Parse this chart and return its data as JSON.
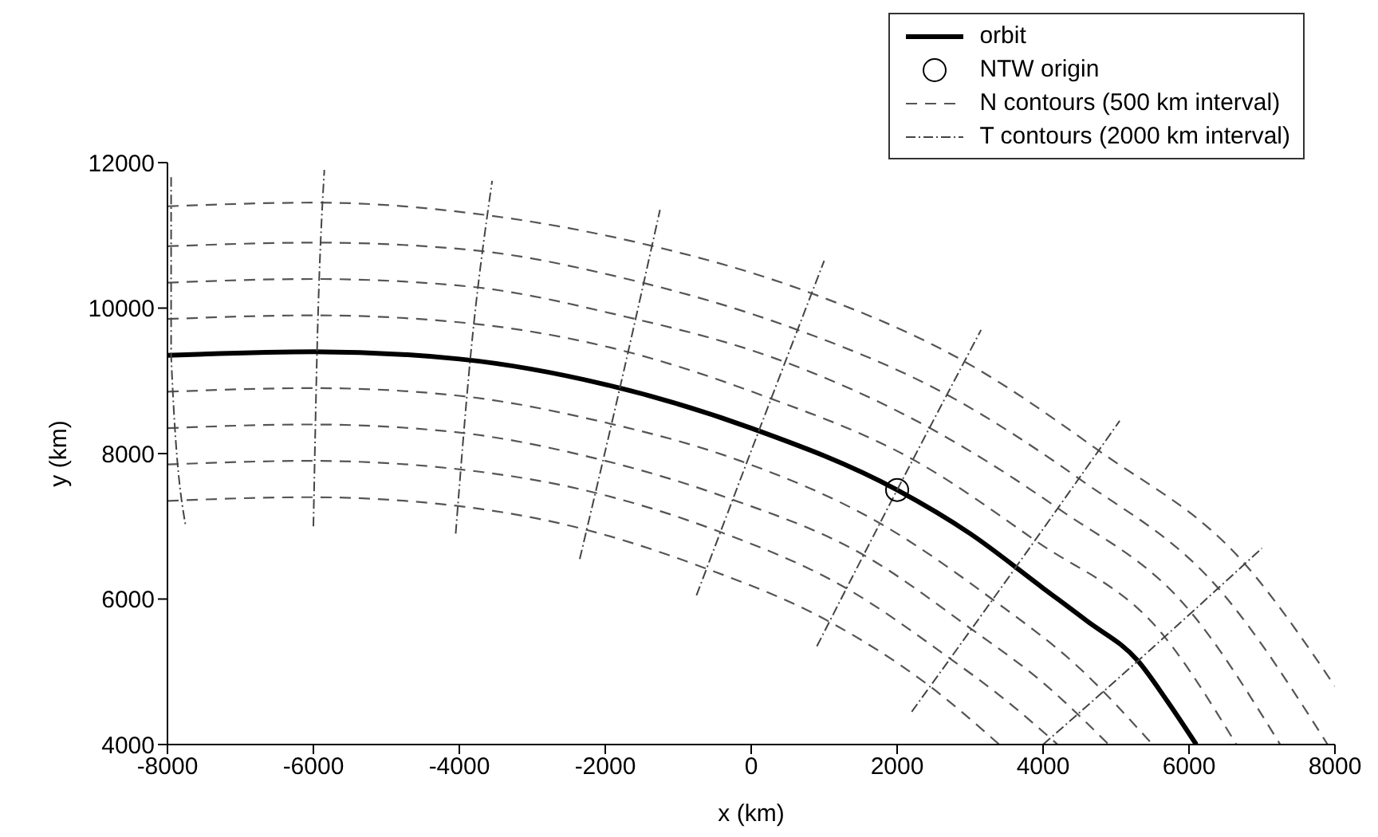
{
  "chart_data": {
    "type": "line",
    "xlabel": "x (km)",
    "ylabel": "y (km)",
    "xlim": [
      -8000,
      8000
    ],
    "ylim": [
      4000,
      12000
    ],
    "xticks": [
      -8000,
      -6000,
      -4000,
      -2000,
      0,
      2000,
      4000,
      6000,
      8000
    ],
    "yticks": [
      4000,
      6000,
      8000,
      10000,
      12000
    ],
    "grid": false,
    "legend": "top right",
    "series": [
      {
        "name": "orbit",
        "color": "#000000",
        "line_style": "solid",
        "marker": "none",
        "x": [
          -8000,
          -6000,
          -4000,
          -2000,
          0,
          2000,
          3000,
          4000,
          4600,
          5300,
          5700,
          6100
        ],
        "values": [
          9350,
          9400,
          9300,
          8950,
          8350,
          7500,
          6900,
          6150,
          5700,
          5150,
          4600,
          4000
        ]
      },
      {
        "name": "NTW origin",
        "color": "#000000",
        "type": "scatter",
        "marker": "circle",
        "x": [
          2000
        ],
        "values": [
          7500
        ]
      },
      {
        "name": "N contours (500 km interval)",
        "color": "#555555",
        "line_style": "dashed",
        "marker": "none",
        "x": [
          -8000,
          -6000,
          -3950,
          -1900,
          150,
          2250,
          3900,
          5650,
          6650
        ],
        "values": [
          9850,
          9900,
          9800,
          9450,
          8800,
          7900,
          6800,
          5500,
          4000
        ]
      },
      {
        "color": "#555555",
        "line_style": "dashed",
        "marker": "none",
        "x": [
          -8000,
          -6000,
          -3900,
          -1800,
          350,
          2450,
          4200,
          6000,
          7250
        ],
        "values": [
          10350,
          10400,
          10300,
          9900,
          9300,
          8350,
          7250,
          5850,
          4000
        ]
      },
      {
        "color": "#555555",
        "line_style": "dashed",
        "marker": "none",
        "x": [
          -8000,
          -5950,
          -3850,
          -1700,
          500,
          2700,
          4500,
          6400,
          7900
        ],
        "values": [
          10850,
          10900,
          10800,
          10400,
          9750,
          8800,
          7650,
          6150,
          4000
        ]
      },
      {
        "color": "#555555",
        "line_style": "dashed",
        "marker": "none",
        "x": [
          -8000,
          -5950,
          -3800,
          -1550,
          700,
          2950,
          4750,
          6750,
          8000
        ],
        "values": [
          11400,
          11450,
          11300,
          10900,
          10250,
          9250,
          8050,
          6500,
          4800
        ]
      },
      {
        "color": "#555555",
        "line_style": "dashed",
        "marker": "none",
        "x": [
          -8000,
          -6000,
          -4050,
          -2100,
          -150,
          1750,
          3300,
          4500,
          5500
        ],
        "values": [
          8850,
          8900,
          8800,
          8450,
          7900,
          7050,
          6000,
          5050,
          4000
        ]
      },
      {
        "color": "#555555",
        "line_style": "dashed",
        "marker": "none",
        "x": [
          -8000,
          -6050,
          -4100,
          -2200,
          -350,
          1550,
          3000,
          4000,
          4900
        ],
        "values": [
          8350,
          8400,
          8300,
          7950,
          7400,
          6600,
          5600,
          4850,
          4000
        ]
      },
      {
        "color": "#555555",
        "line_style": "dashed",
        "marker": "none",
        "x": [
          -8000,
          -6050,
          -4150,
          -2300,
          -500,
          1300,
          2700,
          3500,
          4200
        ],
        "values": [
          7850,
          7900,
          7800,
          7500,
          6950,
          6150,
          5200,
          4600,
          4000
        ]
      },
      {
        "color": "#555555",
        "line_style": "dashed",
        "marker": "none",
        "x": [
          -8000,
          -6050,
          -4200,
          -2450,
          -700,
          1050,
          2450,
          3400
        ],
        "values": [
          7350,
          7400,
          7300,
          7000,
          6450,
          5700,
          4800,
          4000
        ]
      },
      {
        "name": "T contours (2000 km interval)",
        "color": "#444444",
        "line_style": "dashdot",
        "marker": "none",
        "x": [
          -7950,
          -7950,
          -7750
        ],
        "values": [
          11800,
          9350,
          7000
        ]
      },
      {
        "color": "#444444",
        "line_style": "dashdot",
        "marker": "none",
        "x": [
          -6000,
          -5950,
          -5850
        ],
        "values": [
          7000,
          9400,
          11900
        ]
      },
      {
        "color": "#444444",
        "line_style": "dashdot",
        "marker": "none",
        "x": [
          -4050,
          -3850,
          -3550
        ],
        "values": [
          6900,
          9300,
          11750
        ]
      },
      {
        "color": "#444444",
        "line_style": "dashdot",
        "marker": "none",
        "x": [
          -2350,
          -1800,
          -1250
        ],
        "values": [
          6550,
          8900,
          11350
        ]
      },
      {
        "color": "#444444",
        "line_style": "dashdot",
        "marker": "none",
        "x": [
          -750,
          100,
          1000
        ],
        "values": [
          6050,
          8300,
          10650
        ]
      },
      {
        "color": "#444444",
        "line_style": "dashdot",
        "marker": "none",
        "x": [
          900,
          2000,
          3150
        ],
        "values": [
          5350,
          7500,
          9700
        ]
      },
      {
        "color": "#444444",
        "line_style": "dashdot",
        "marker": "none",
        "x": [
          2200,
          3600,
          5050
        ],
        "values": [
          4450,
          6400,
          8450
        ]
      },
      {
        "color": "#444444",
        "line_style": "dashdot",
        "marker": "none",
        "x": [
          4000,
          5300,
          7000
        ],
        "values": [
          4000,
          5150,
          6700
        ]
      }
    ]
  }
}
